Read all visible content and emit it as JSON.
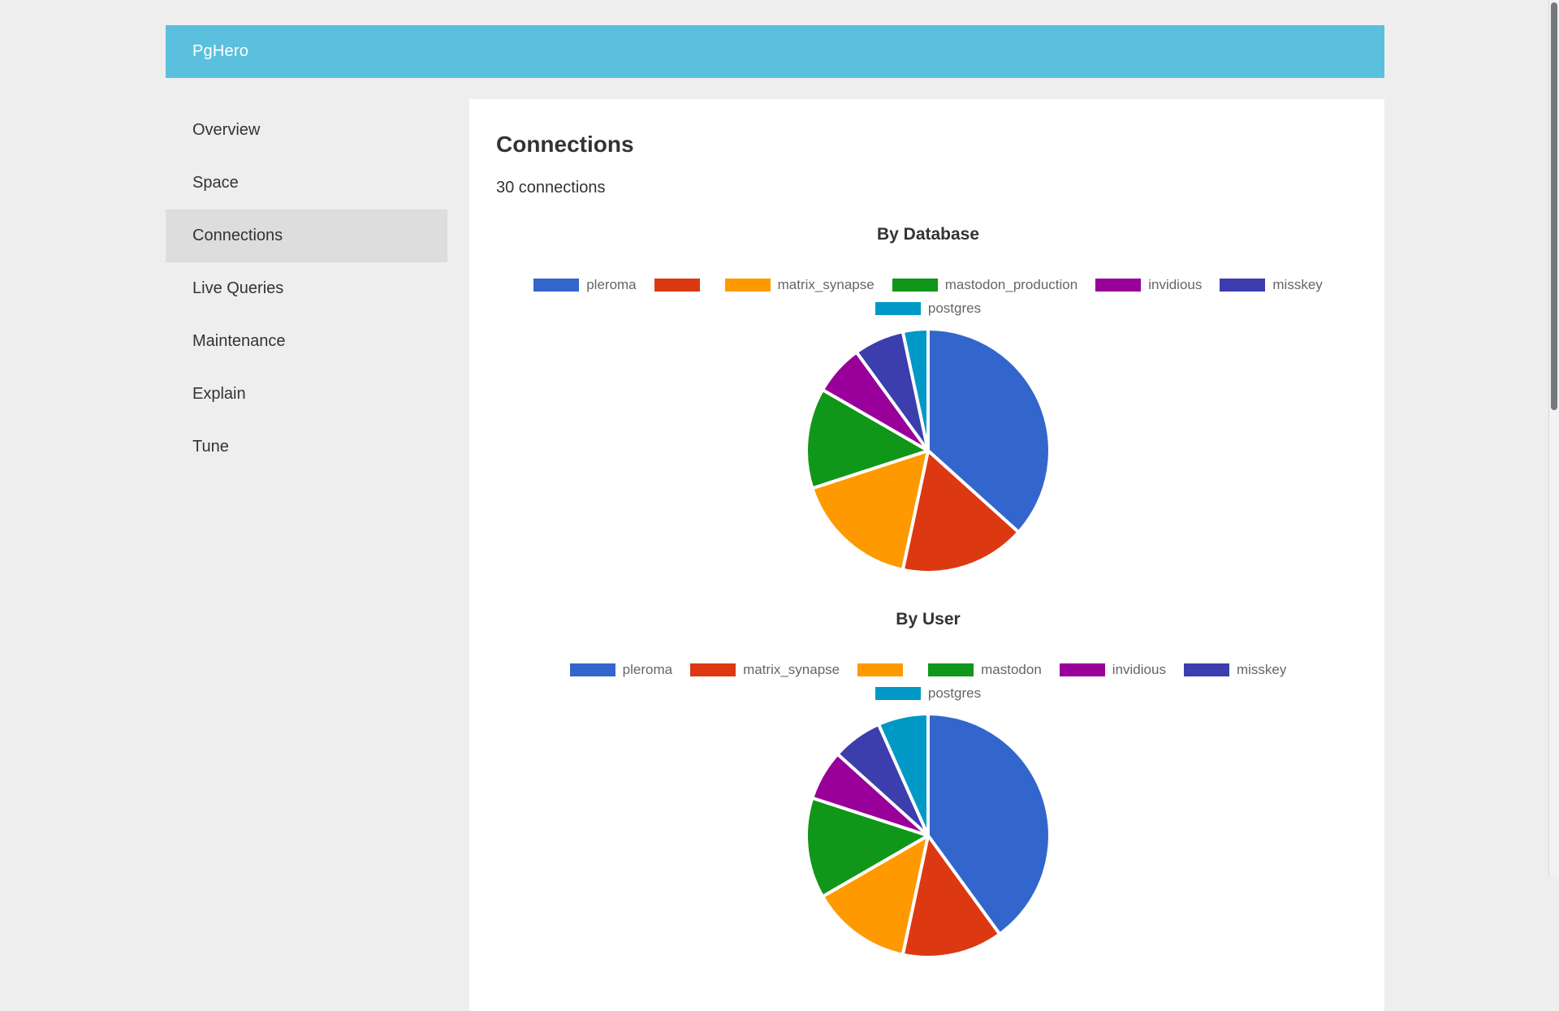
{
  "theme": {
    "header_bg": "#5bc0de",
    "page_bg": "#eeeeee",
    "panel_bg": "#ffffff",
    "sidebar_active_bg": "#dddddd",
    "text_color": "#333333",
    "legend_text_color": "#666666",
    "scrollbar_thumb": "#75797c"
  },
  "header": {
    "brand": "PgHero"
  },
  "sidebar": {
    "items": [
      {
        "label": "Overview",
        "active": false
      },
      {
        "label": "Space",
        "active": false
      },
      {
        "label": "Connections",
        "active": true
      },
      {
        "label": "Live Queries",
        "active": false
      },
      {
        "label": "Maintenance",
        "active": false
      },
      {
        "label": "Explain",
        "active": false
      },
      {
        "label": "Tune",
        "active": false
      }
    ]
  },
  "main": {
    "title": "Connections",
    "subtitle": "30 connections"
  },
  "chart_data": [
    {
      "type": "pie",
      "title": "By Database",
      "labels": [
        "pleroma",
        "",
        "matrix_synapse",
        "mastodon_production",
        "invidious",
        "misskey",
        "postgres"
      ],
      "values": [
        11,
        5,
        5,
        4,
        2,
        2,
        1
      ],
      "colors": [
        "#3366cc",
        "#dc3912",
        "#ff9900",
        "#109618",
        "#990099",
        "#3b3eac",
        "#0099c6"
      ],
      "total": 30,
      "legend_position": "top",
      "legend_row_break": 6,
      "start_angle_deg": 0,
      "direction": "clockwise",
      "slice_border_color": "#ffffff"
    },
    {
      "type": "pie",
      "title": "By User",
      "labels": [
        "pleroma",
        "matrix_synapse",
        "",
        "mastodon",
        "invidious",
        "misskey",
        "postgres"
      ],
      "values": [
        12,
        4,
        4,
        4,
        2,
        2,
        2
      ],
      "colors": [
        "#3366cc",
        "#dc3912",
        "#ff9900",
        "#109618",
        "#990099",
        "#3b3eac",
        "#0099c6"
      ],
      "total": 30,
      "legend_position": "top",
      "legend_row_break": 6,
      "start_angle_deg": 0,
      "direction": "clockwise",
      "slice_border_color": "#ffffff",
      "clipped_at_bottom": true
    }
  ]
}
